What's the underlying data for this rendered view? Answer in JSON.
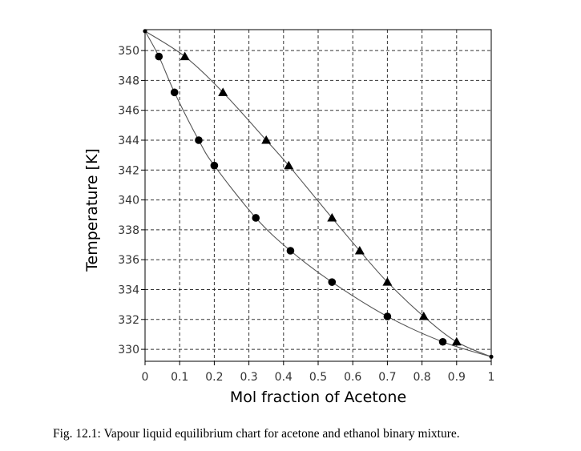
{
  "chart_data": {
    "type": "scatter",
    "title": "",
    "xlabel": "Mol fraction of Acetone",
    "ylabel": "Temperature [K]",
    "xlim": [
      0,
      1
    ],
    "ylim": [
      329.2,
      351.4
    ],
    "x_ticks": [
      "0",
      "0.1",
      "0.2",
      "0.3",
      "0.4",
      "0.5",
      "0.6",
      "0.7",
      "0.8",
      "0.9",
      "1"
    ],
    "y_ticks": [
      "330",
      "332",
      "334",
      "336",
      "338",
      "340",
      "342",
      "344",
      "346",
      "348",
      "350"
    ],
    "grid": true,
    "legend": "none",
    "series": [
      {
        "marker": "circle",
        "points": [
          {
            "x": 0.0,
            "y": 351.3
          },
          {
            "x": 0.04,
            "y": 349.6
          },
          {
            "x": 0.085,
            "y": 347.2
          },
          {
            "x": 0.155,
            "y": 344.0
          },
          {
            "x": 0.2,
            "y": 342.3
          },
          {
            "x": 0.32,
            "y": 338.8
          },
          {
            "x": 0.42,
            "y": 336.6
          },
          {
            "x": 0.54,
            "y": 334.5
          },
          {
            "x": 0.7,
            "y": 332.2
          },
          {
            "x": 0.86,
            "y": 330.5
          },
          {
            "x": 1.0,
            "y": 329.5
          }
        ]
      },
      {
        "marker": "triangle",
        "points": [
          {
            "x": 0.0,
            "y": 351.3
          },
          {
            "x": 0.115,
            "y": 349.6
          },
          {
            "x": 0.225,
            "y": 347.2
          },
          {
            "x": 0.35,
            "y": 344.0
          },
          {
            "x": 0.415,
            "y": 342.3
          },
          {
            "x": 0.54,
            "y": 338.8
          },
          {
            "x": 0.62,
            "y": 336.6
          },
          {
            "x": 0.7,
            "y": 334.5
          },
          {
            "x": 0.805,
            "y": 332.2
          },
          {
            "x": 0.9,
            "y": 330.5
          },
          {
            "x": 1.0,
            "y": 329.5
          }
        ]
      }
    ],
    "colors": {
      "markers": "#000000",
      "curves": "#555555",
      "grid": "#333333",
      "axes": "#000000"
    }
  },
  "caption": "Fig. 12.1: Vapour liquid equilibrium chart for acetone and ethanol binary mixture."
}
